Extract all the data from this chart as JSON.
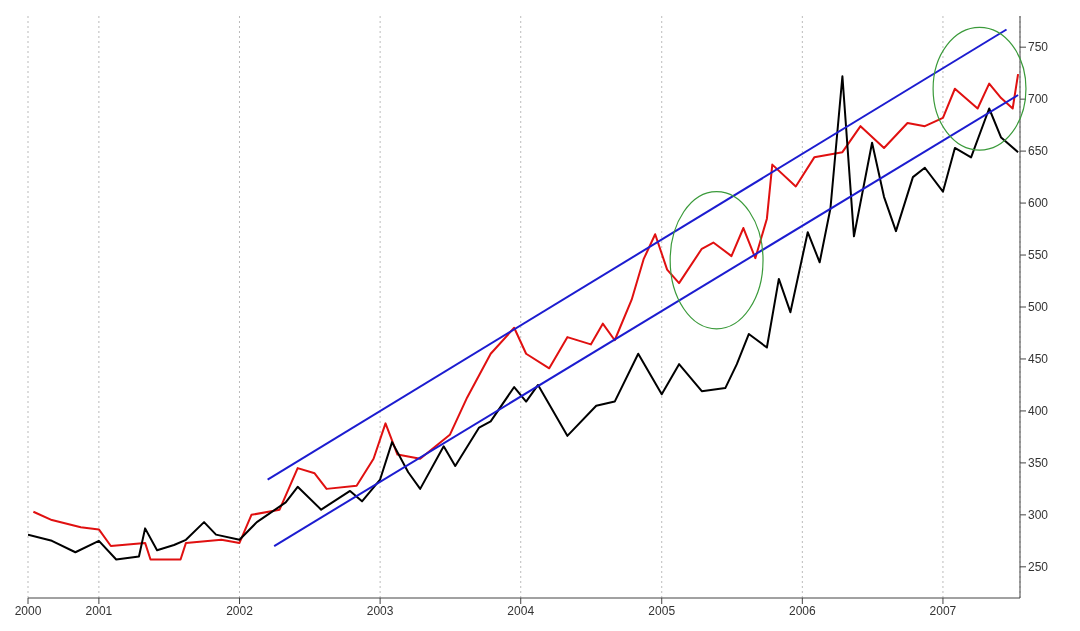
{
  "chart_data": {
    "type": "line",
    "xlim": [
      "2000-07-01",
      "2007-07-20"
    ],
    "xticks": [
      {
        "value": "2000-07-01",
        "label": "2000"
      },
      "2001",
      "2002",
      "2003",
      "2004",
      "2005",
      "2006",
      "2007"
    ],
    "ylim": [
      220,
      780
    ],
    "yticks": [
      250,
      300,
      350,
      400,
      450,
      500,
      550,
      600,
      650,
      700,
      750
    ],
    "grid": "x",
    "marker": "none",
    "line_style": "solid",
    "series": [
      {
        "color": "#e01010",
        "x": [
          "2000-07-15",
          "2000-09-01",
          "2000-11-15",
          "2001-01-01",
          "2001-02-01",
          "2001-04-01",
          "2001-05-01",
          "2001-05-15",
          "2001-08-01",
          "2001-08-15",
          "2001-11-15",
          "2002-01-01",
          "2002-02-01",
          "2002-04-15",
          "2002-06-01",
          "2002-07-15",
          "2002-08-15",
          "2002-11-01",
          "2002-12-15",
          "2003-01-15",
          "2003-02-15",
          "2003-04-15",
          "2003-07-01",
          "2003-08-15",
          "2003-10-15",
          "2003-12-15",
          "2004-01-15",
          "2004-03-15",
          "2004-05-01",
          "2004-07-01",
          "2004-08-01",
          "2004-09-01",
          "2004-10-15",
          "2004-11-15",
          "2004-12-15",
          "2005-01-15",
          "2005-02-15",
          "2005-04-15",
          "2005-05-15",
          "2005-07-01",
          "2005-08-01",
          "2005-09-01",
          "2005-10-01",
          "2005-10-15",
          "2005-12-15",
          "2006-02-01",
          "2006-04-15",
          "2006-06-01",
          "2006-08-01",
          "2006-10-01",
          "2006-11-15",
          "2007-01-01",
          "2007-02-01",
          "2007-04-01",
          "2007-05-01",
          "2007-06-01",
          "2007-07-01",
          "2007-07-15"
        ],
        "values": [
          303,
          295,
          288,
          286,
          270,
          272,
          273,
          257,
          257,
          273,
          276,
          273,
          300,
          305,
          345,
          340,
          325,
          328,
          354,
          388,
          358,
          354,
          377,
          413,
          455,
          480,
          455,
          441,
          471,
          464,
          484,
          468,
          507,
          546,
          570,
          536,
          523,
          556,
          562,
          549,
          576,
          547,
          585,
          637,
          616,
          644,
          649,
          674,
          653,
          677,
          674,
          682,
          710,
          691,
          715,
          701,
          691,
          724
        ]
      },
      {
        "color": "#000000",
        "x": [
          "2000-07-01",
          "2000-09-01",
          "2000-11-01",
          "2001-01-01",
          "2001-02-15",
          "2001-04-15",
          "2001-05-01",
          "2001-06-01",
          "2001-07-15",
          "2001-08-15",
          "2001-10-01",
          "2001-11-01",
          "2002-01-01",
          "2002-02-15",
          "2002-05-01",
          "2002-06-01",
          "2002-08-01",
          "2002-10-15",
          "2002-11-15",
          "2003-01-01",
          "2003-02-01",
          "2003-03-15",
          "2003-04-15",
          "2003-06-15",
          "2003-07-15",
          "2003-09-15",
          "2003-10-15",
          "2003-12-15",
          "2004-01-15",
          "2004-02-15",
          "2004-05-01",
          "2004-07-15",
          "2004-09-01",
          "2004-11-01",
          "2005-01-01",
          "2005-02-15",
          "2005-04-15",
          "2005-06-15",
          "2005-07-15",
          "2005-08-15",
          "2005-10-01",
          "2005-11-01",
          "2005-12-01",
          "2006-01-15",
          "2006-02-15",
          "2006-03-15",
          "2006-04-15",
          "2006-05-15",
          "2006-07-01",
          "2006-08-01",
          "2006-09-01",
          "2006-10-15",
          "2006-11-15",
          "2007-01-01",
          "2007-02-01",
          "2007-03-15",
          "2007-05-01",
          "2007-06-01",
          "2007-07-15"
        ],
        "values": [
          281,
          275,
          264,
          275,
          257,
          260,
          287,
          266,
          271,
          276,
          293,
          281,
          276,
          293,
          312,
          327,
          305,
          323,
          313,
          334,
          370,
          341,
          325,
          366,
          347,
          384,
          390,
          423,
          409,
          425,
          376,
          405,
          409,
          455,
          416,
          445,
          419,
          422,
          445,
          474,
          461,
          527,
          495,
          572,
          543,
          595,
          722,
          568,
          658,
          606,
          573,
          625,
          634,
          611,
          653,
          644,
          691,
          663,
          649
        ]
      },
      {
        "color": "#1c1cd0",
        "x": [
          "2002-03-15",
          "2007-06-15"
        ],
        "values": [
          334,
          767
        ]
      },
      {
        "color": "#1c1cd0",
        "x": [
          "2002-04-01",
          "2007-07-15"
        ],
        "values": [
          270,
          704
        ]
      }
    ]
  }
}
